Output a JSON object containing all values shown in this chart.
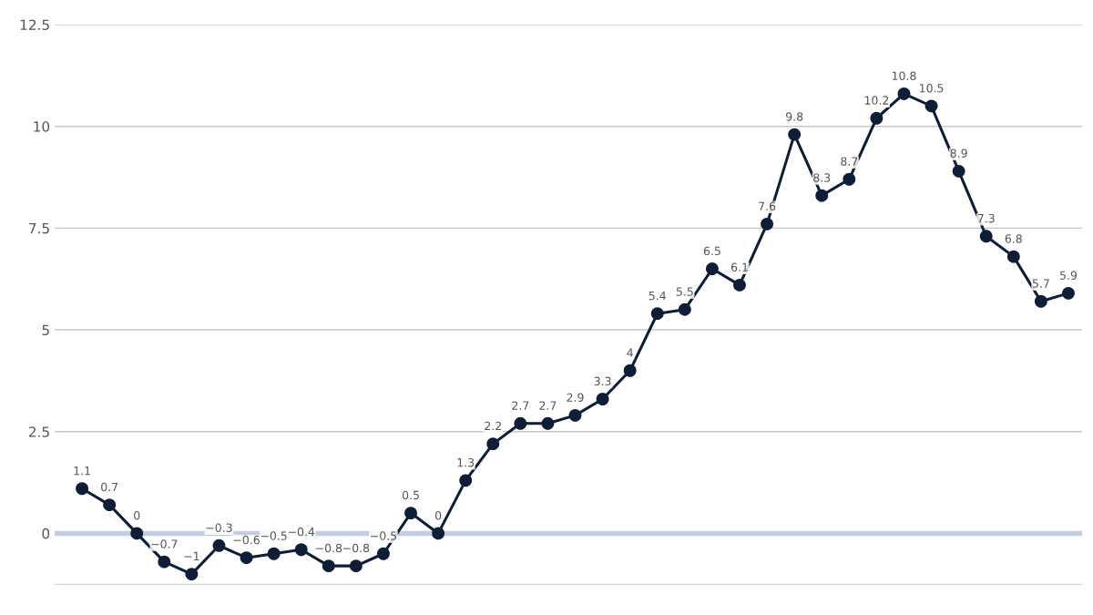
{
  "chart_data": {
    "type": "line",
    "categories": [
      null,
      null,
      null,
      null,
      null,
      null,
      null,
      null,
      null,
      null,
      null,
      null,
      null,
      null,
      null,
      null,
      null,
      null,
      null,
      null,
      null,
      null,
      null,
      null,
      null,
      null,
      null,
      null,
      null,
      null,
      null,
      null,
      null,
      null,
      null,
      null,
      null
    ],
    "series": [
      {
        "color": "#0f1d36",
        "values": [
          1.1,
          0.7,
          0,
          -0.7,
          -1,
          -0.3,
          -0.6,
          -0.5,
          -0.4,
          -0.8,
          -0.8,
          -0.5,
          0.5,
          0,
          1.3,
          2.2,
          2.7,
          2.7,
          2.9,
          3.3,
          4,
          5.4,
          5.5,
          6.5,
          6.1,
          7.6,
          9.8,
          8.3,
          8.7,
          10.2,
          10.8,
          10.5,
          8.9,
          7.3,
          6.8,
          5.7,
          5.9
        ]
      }
    ],
    "ylim": [
      -1.25,
      12.5
    ],
    "yticks": [
      0,
      2.5,
      5,
      7.5,
      10,
      12.5
    ],
    "grid": "y",
    "marker": "circle",
    "line_style": "solid",
    "data_labels": true,
    "legend": false,
    "ref_lines": [
      {
        "axis": "y",
        "value": 0,
        "color": "#c3cddd"
      }
    ]
  }
}
